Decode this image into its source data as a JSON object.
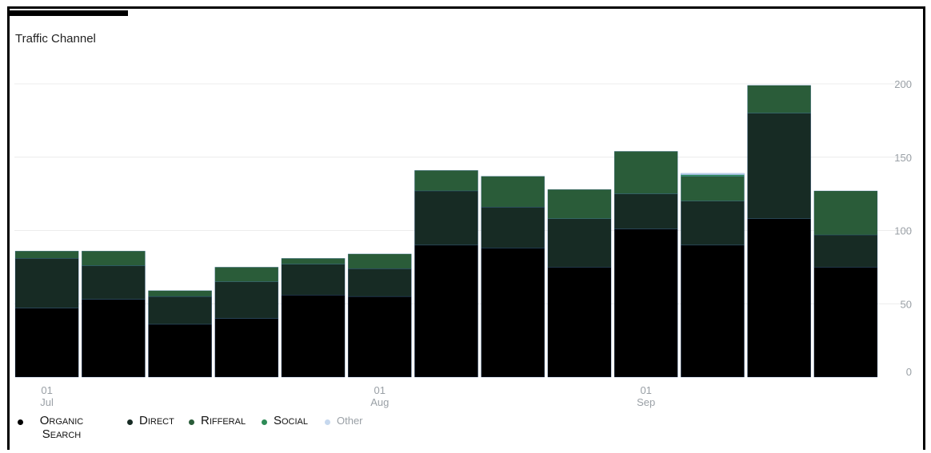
{
  "title": "Traffic Channel",
  "colors": {
    "organic": "#000000",
    "direct": "#172b24",
    "rifferal": "#2a5c39",
    "social": "#2e8b57",
    "other": "#c6d8ee",
    "grid": "#ececec",
    "tick": "#9aa0a6"
  },
  "chart_data": {
    "type": "bar",
    "stacked": true,
    "title": "Traffic Channel",
    "categories": [
      "",
      "",
      "",
      "",
      "",
      "",
      "",
      "",
      "",
      "",
      "",
      "",
      ""
    ],
    "x_ticks": [
      {
        "index": 0,
        "day": "01",
        "month": "Jul"
      },
      {
        "index": 5,
        "day": "01",
        "month": "Aug"
      },
      {
        "index": 9,
        "day": "01",
        "month": "Sep"
      }
    ],
    "series": [
      {
        "name": "Organic Search",
        "values": [
          47,
          53,
          36,
          40,
          56,
          55,
          90,
          88,
          75,
          101,
          90,
          108,
          75
        ]
      },
      {
        "name": "Direct",
        "values": [
          34,
          23,
          19,
          25,
          21,
          19,
          37,
          28,
          33,
          24,
          30,
          72,
          22
        ]
      },
      {
        "name": "Rifferal",
        "values": [
          5,
          10,
          4,
          10,
          4,
          10,
          14,
          21,
          20,
          29,
          17,
          19,
          30
        ]
      },
      {
        "name": "Social",
        "values": [
          0,
          0,
          0,
          0,
          0,
          0,
          0,
          0,
          0,
          0,
          1,
          0,
          0
        ]
      },
      {
        "name": "Other",
        "values": [
          0,
          0,
          0,
          0,
          0,
          0,
          0,
          0,
          0,
          0,
          1,
          0,
          0
        ]
      }
    ],
    "y_ticks": [
      0,
      50,
      100,
      150,
      200
    ],
    "ylim": [
      0,
      200
    ],
    "y_axis_position": "right",
    "grid": true,
    "legend_position": "bottom-left"
  },
  "legend": [
    {
      "label": "Organic Search"
    },
    {
      "label": "Direct"
    },
    {
      "label": "Rifferal"
    },
    {
      "label": "Social"
    },
    {
      "label": "Other"
    }
  ]
}
